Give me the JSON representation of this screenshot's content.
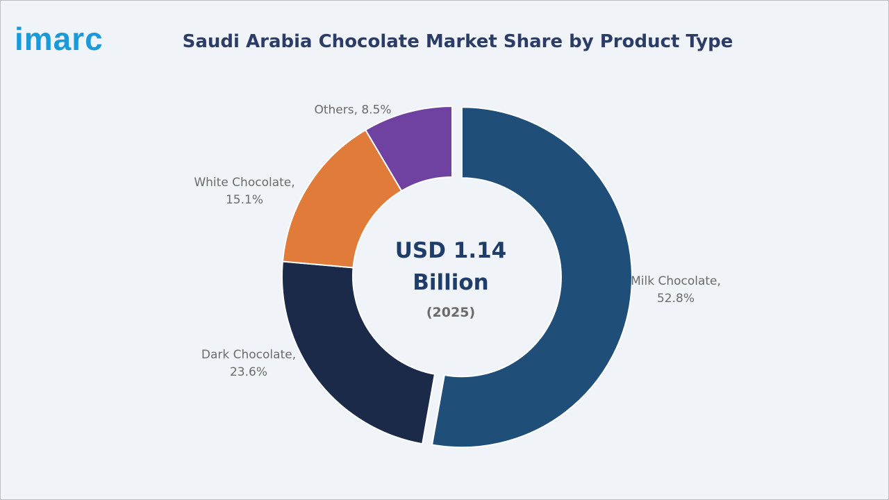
{
  "logo": "imarc",
  "chart_data": {
    "type": "donut",
    "title": "Saudi Arabia Chocolate Market Share by Product Type",
    "center_text": [
      "USD 1.14",
      "Billion",
      "(2025)"
    ],
    "values": [
      52.8,
      23.6,
      15.1,
      8.5
    ],
    "value_labels": [
      "Milk Chocolate,\n52.8%",
      "Dark Chocolate,\n23.6%",
      "White Chocolate,\n15.1%",
      "Others, 8.5%"
    ],
    "colors": [
      "#1f4e79",
      "#1c2a4a",
      "#e07b39",
      "#6f42a1"
    ]
  }
}
